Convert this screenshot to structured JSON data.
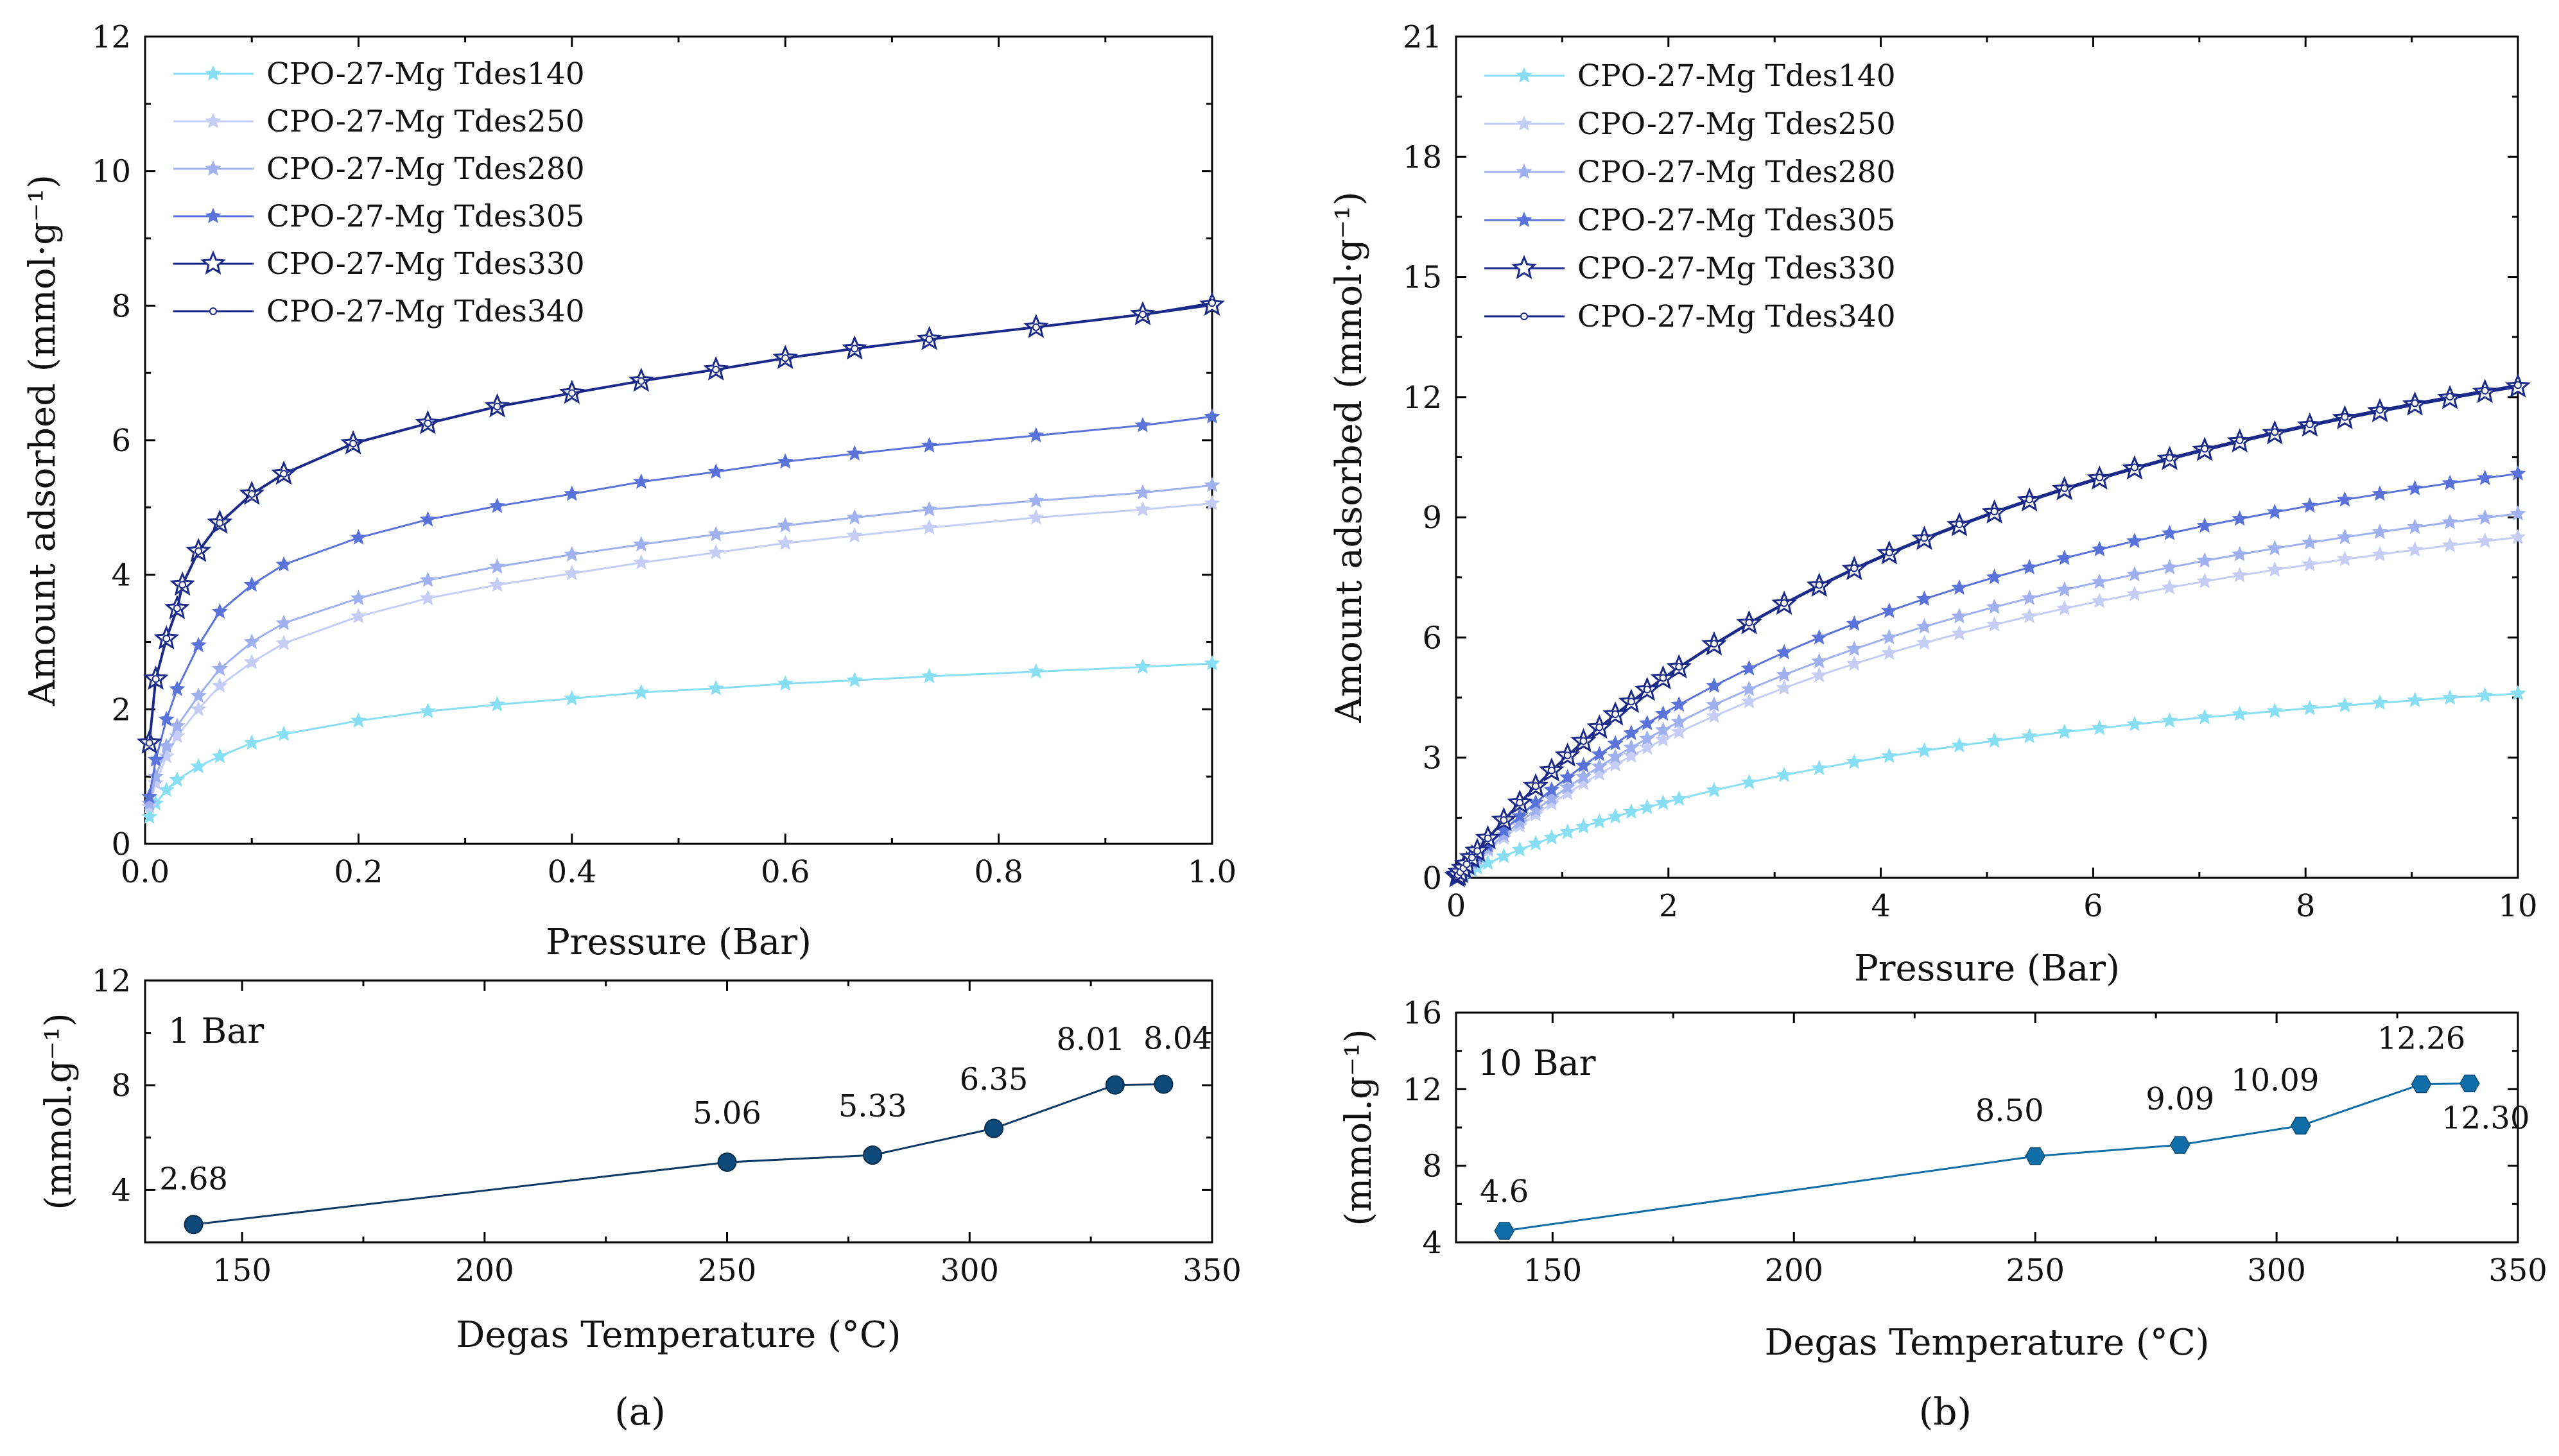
{
  "chart_data": [
    {
      "id": "a_main",
      "type": "line",
      "xlabel": "Pressure (Bar)",
      "ylabel": "Amount adsorbed (mmol·g⁻¹)",
      "xlim": [
        0,
        1.0
      ],
      "ylim": [
        0,
        12
      ],
      "xticks": [
        0,
        0.2,
        0.4,
        0.6,
        0.8,
        1.0
      ],
      "xtick_labels": [
        "0.0",
        "0.2",
        "0.4",
        "0.6",
        "0.8",
        "1.0"
      ],
      "yticks": [
        0,
        2,
        4,
        6,
        8,
        10,
        12
      ],
      "ytick_labels": [
        "0",
        "2",
        "4",
        "6",
        "8",
        "10",
        "12"
      ],
      "legend": "top-left",
      "series": [
        {
          "name": "CPO-27-Mg Tdes140",
          "color": "#88def3",
          "marker": "star-small",
          "x": [
            0.004,
            0.01,
            0.02,
            0.03,
            0.05,
            0.07,
            0.1,
            0.13,
            0.2,
            0.265,
            0.33,
            0.4,
            0.465,
            0.535,
            0.6,
            0.665,
            0.735,
            0.835,
            0.935,
            1.0
          ],
          "y": [
            0.4,
            0.6,
            0.8,
            0.95,
            1.15,
            1.3,
            1.5,
            1.63,
            1.83,
            1.97,
            2.07,
            2.16,
            2.25,
            2.31,
            2.38,
            2.43,
            2.49,
            2.56,
            2.63,
            2.68
          ]
        },
        {
          "name": "CPO-27-Mg Tdes250",
          "color": "#c5cdf5",
          "marker": "star-small",
          "x": [
            0.004,
            0.01,
            0.02,
            0.03,
            0.05,
            0.07,
            0.1,
            0.13,
            0.2,
            0.265,
            0.33,
            0.4,
            0.465,
            0.535,
            0.6,
            0.665,
            0.735,
            0.835,
            0.935,
            1.0
          ],
          "y": [
            0.55,
            0.9,
            1.3,
            1.6,
            2.0,
            2.35,
            2.7,
            2.98,
            3.38,
            3.65,
            3.85,
            4.02,
            4.18,
            4.33,
            4.47,
            4.58,
            4.7,
            4.85,
            4.97,
            5.06
          ]
        },
        {
          "name": "CPO-27-Mg Tdes280",
          "color": "#9fb0ee",
          "marker": "star-small",
          "x": [
            0.004,
            0.01,
            0.02,
            0.03,
            0.05,
            0.07,
            0.1,
            0.13,
            0.2,
            0.265,
            0.33,
            0.4,
            0.465,
            0.535,
            0.6,
            0.665,
            0.735,
            0.835,
            0.935,
            1.0
          ],
          "y": [
            0.6,
            1.0,
            1.45,
            1.75,
            2.2,
            2.6,
            3.0,
            3.28,
            3.65,
            3.92,
            4.12,
            4.3,
            4.45,
            4.6,
            4.73,
            4.85,
            4.97,
            5.1,
            5.22,
            5.33
          ]
        },
        {
          "name": "CPO-27-Mg Tdes305",
          "color": "#5a73da",
          "marker": "star-small",
          "x": [
            0.004,
            0.01,
            0.02,
            0.03,
            0.05,
            0.07,
            0.1,
            0.13,
            0.2,
            0.265,
            0.33,
            0.4,
            0.465,
            0.535,
            0.6,
            0.665,
            0.735,
            0.835,
            0.935,
            1.0
          ],
          "y": [
            0.7,
            1.25,
            1.85,
            2.3,
            2.95,
            3.45,
            3.85,
            4.15,
            4.55,
            4.82,
            5.02,
            5.2,
            5.38,
            5.53,
            5.68,
            5.8,
            5.92,
            6.07,
            6.22,
            6.35
          ]
        },
        {
          "name": "CPO-27-Mg Tdes330",
          "color": "#1a2a8a",
          "marker": "star",
          "x": [
            0.004,
            0.01,
            0.02,
            0.03,
            0.035,
            0.05,
            0.07,
            0.1,
            0.13,
            0.195,
            0.265,
            0.33,
            0.4,
            0.465,
            0.535,
            0.6,
            0.665,
            0.735,
            0.835,
            0.935,
            1.0
          ],
          "y": [
            1.5,
            2.45,
            3.05,
            3.5,
            3.85,
            4.35,
            4.77,
            5.2,
            5.5,
            5.95,
            6.25,
            6.5,
            6.7,
            6.88,
            7.05,
            7.22,
            7.36,
            7.5,
            7.68,
            7.87,
            8.01
          ]
        },
        {
          "name": "CPO-27-Mg Tdes340",
          "color": "#1a2a8a",
          "marker": "circle-open",
          "x": [
            0.004,
            0.01,
            0.02,
            0.03,
            0.035,
            0.05,
            0.07,
            0.1,
            0.13,
            0.195,
            0.265,
            0.33,
            0.4,
            0.465,
            0.535,
            0.6,
            0.665,
            0.735,
            0.835,
            0.935,
            1.0
          ],
          "y": [
            1.5,
            2.45,
            3.05,
            3.5,
            3.85,
            4.35,
            4.77,
            5.2,
            5.5,
            5.95,
            6.25,
            6.5,
            6.7,
            6.88,
            7.05,
            7.22,
            7.36,
            7.5,
            7.68,
            7.87,
            8.04
          ]
        }
      ]
    },
    {
      "id": "a_inset",
      "type": "line",
      "annotation": "1 Bar",
      "xlabel": "Degas Temperature (°C)",
      "ylabel": "(mmol.g⁻¹)",
      "xlim": [
        130,
        350
      ],
      "ylim": [
        2,
        12
      ],
      "xticks": [
        150,
        200,
        250,
        300,
        350
      ],
      "xtick_labels": [
        "150",
        "200",
        "250",
        "300",
        "350"
      ],
      "yticks": [
        4,
        8,
        12
      ],
      "ytick_labels": [
        "4",
        "8",
        "12"
      ],
      "color": "#0d4a7a",
      "marker": "circle",
      "x": [
        140,
        250,
        280,
        305,
        330,
        340
      ],
      "y": [
        2.68,
        5.06,
        5.33,
        6.35,
        8.01,
        8.04
      ],
      "point_labels": [
        "2.68",
        "5.06",
        "5.33",
        "6.35",
        "8.01",
        "8.04"
      ]
    },
    {
      "id": "b_main",
      "type": "line",
      "xlabel": "Pressure (Bar)",
      "ylabel": "Amount adsorbed (mmol·g⁻¹)",
      "xlim": [
        0,
        10
      ],
      "ylim": [
        0,
        21
      ],
      "xticks": [
        0,
        2,
        4,
        6,
        8,
        10
      ],
      "xtick_labels": [
        "0",
        "2",
        "4",
        "6",
        "8",
        "10"
      ],
      "yticks": [
        0,
        3,
        6,
        9,
        12,
        15,
        18,
        21
      ],
      "ytick_labels": [
        "0",
        "3",
        "6",
        "9",
        "12",
        "15",
        "18",
        "21"
      ],
      "legend": "top-left",
      "series": [
        {
          "name": "CPO-27-Mg Tdes140",
          "color": "#88def3",
          "marker": "star-small",
          "final_y": 4.6
        },
        {
          "name": "CPO-27-Mg Tdes250",
          "color": "#c5cdf5",
          "marker": "star-small",
          "final_y": 8.5
        },
        {
          "name": "CPO-27-Mg Tdes280",
          "color": "#9fb0ee",
          "marker": "star-small",
          "final_y": 9.09
        },
        {
          "name": "CPO-27-Mg Tdes305",
          "color": "#5a73da",
          "marker": "star-small",
          "final_y": 10.09
        },
        {
          "name": "CPO-27-Mg Tdes330",
          "color": "#1a2a8a",
          "marker": "star",
          "final_y": 12.26
        },
        {
          "name": "CPO-27-Mg Tdes340",
          "color": "#1a2a8a",
          "marker": "circle-open",
          "final_y": 12.3
        }
      ]
    },
    {
      "id": "b_inset",
      "type": "line",
      "annotation": "10 Bar",
      "xlabel": "Degas Temperature (°C)",
      "ylabel": "(mmol.g⁻¹)",
      "xlim": [
        130,
        350
      ],
      "ylim": [
        4,
        16
      ],
      "xticks": [
        150,
        200,
        250,
        300,
        350
      ],
      "xtick_labels": [
        "150",
        "200",
        "250",
        "300",
        "350"
      ],
      "yticks": [
        4,
        8,
        12,
        16
      ],
      "ytick_labels": [
        "4",
        "8",
        "12",
        "16"
      ],
      "color": "#0f6ea8",
      "marker": "hexagon",
      "x": [
        140,
        250,
        280,
        305,
        330,
        340
      ],
      "y": [
        4.6,
        8.5,
        9.09,
        10.09,
        12.26,
        12.3
      ],
      "point_labels": [
        "4.6",
        "8.50",
        "9.09",
        "10.09",
        "12.26",
        "12.30"
      ]
    }
  ],
  "panels": {
    "a": "(a)",
    "b": "(b)"
  }
}
